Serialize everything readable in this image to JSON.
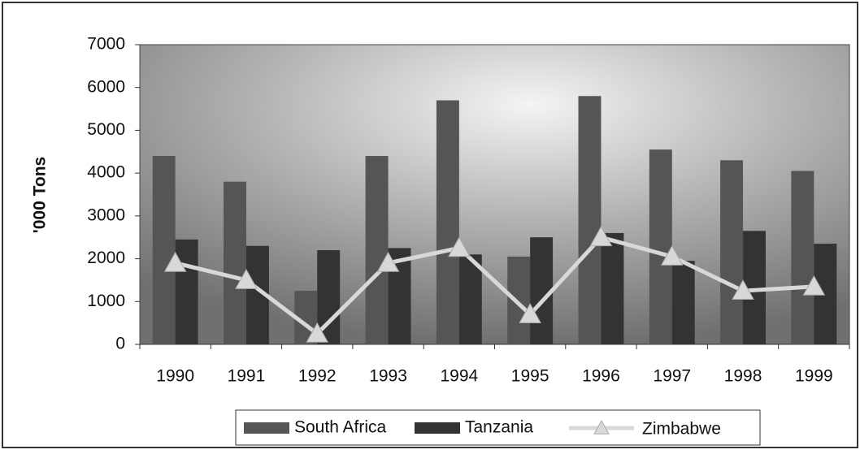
{
  "chart_data": {
    "type": "bar",
    "y_label": "'000 Tons",
    "categories": [
      "1990",
      "1991",
      "1992",
      "1993",
      "1994",
      "1995",
      "1996",
      "1997",
      "1998",
      "1999"
    ],
    "series": [
      {
        "name": "South Africa",
        "color": "#555555",
        "values": [
          4400,
          3800,
          1250,
          4400,
          5700,
          2050,
          5800,
          4550,
          4300,
          4050
        ]
      },
      {
        "name": "Tanzania",
        "color": "#333333",
        "values": [
          2450,
          2300,
          2200,
          2250,
          2100,
          2500,
          2600,
          1950,
          2650,
          2350
        ]
      },
      {
        "name": "Zimbabwe",
        "type": "line",
        "color": "#d8d8d8",
        "values": [
          1900,
          1500,
          250,
          1900,
          2250,
          700,
          2500,
          2050,
          1250,
          1350
        ]
      }
    ],
    "ylim": [
      0,
      7000
    ],
    "yticks": [
      0,
      1000,
      2000,
      3000,
      4000,
      5000,
      6000,
      7000
    ],
    "legend": "bottom"
  }
}
